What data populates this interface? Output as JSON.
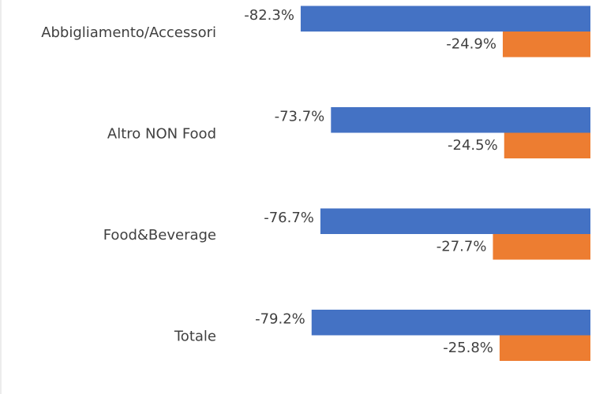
{
  "chart_data": {
    "type": "bar",
    "orientation": "horizontal",
    "categories": [
      "Abbigliamento/Accessori",
      "Altro NON Food",
      "Food&Beverage",
      "Totale"
    ],
    "series": [
      {
        "color": "#4472c4",
        "values": [
          -82.3,
          -73.7,
          -76.7,
          -79.2
        ],
        "value_labels": [
          "-82.3%",
          "-73.7%",
          "-76.7%",
          "-79.2%"
        ]
      },
      {
        "color": "#ed7d31",
        "values": [
          -24.9,
          -24.5,
          -27.7,
          -25.8
        ],
        "value_labels": [
          "-24.9%",
          "-24.5%",
          "-27.7%",
          "-25.8%"
        ]
      }
    ],
    "xlim": [
      -100,
      0
    ]
  }
}
